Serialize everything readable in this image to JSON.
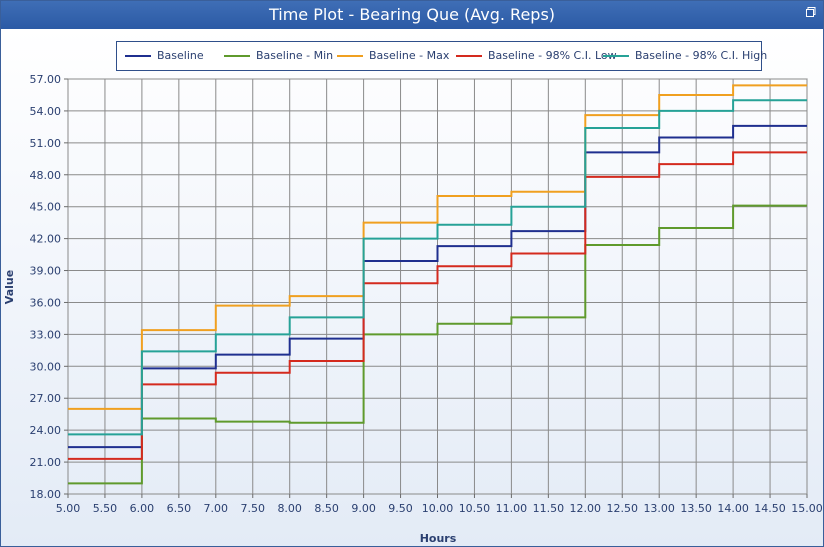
{
  "window": {
    "title": "Time Plot - Bearing Que (Avg. Reps)",
    "restore_icon": "restore-icon"
  },
  "chart_data": {
    "type": "line",
    "step": true,
    "xlabel": "Hours",
    "ylabel": "Value",
    "xlim": [
      5.0,
      15.0
    ],
    "ylim": [
      18.0,
      57.0
    ],
    "x_ticks": [
      "5.00",
      "5.50",
      "6.00",
      "6.50",
      "7.00",
      "7.50",
      "8.00",
      "8.50",
      "9.00",
      "9.50",
      "10.00",
      "10.50",
      "11.00",
      "11.50",
      "12.00",
      "12.50",
      "13.00",
      "13.50",
      "14.00",
      "14.50",
      "15.00"
    ],
    "y_ticks": [
      "18.00",
      "21.00",
      "24.00",
      "27.00",
      "30.00",
      "33.00",
      "36.00",
      "39.00",
      "42.00",
      "45.00",
      "48.00",
      "51.00",
      "54.00",
      "57.00"
    ],
    "grid": true,
    "legend_position": "top",
    "x": [
      5,
      6,
      7,
      8,
      9,
      10,
      11,
      12,
      13,
      14,
      15
    ],
    "series": [
      {
        "name": "Baseline",
        "color": "#1f2f8f",
        "values": [
          22.4,
          29.8,
          31.1,
          32.6,
          39.9,
          41.3,
          42.7,
          50.1,
          51.5,
          52.6,
          52.6
        ]
      },
      {
        "name": "Baseline - Min",
        "color": "#5f9a2c",
        "values": [
          19.0,
          25.1,
          24.8,
          24.7,
          33.0,
          34.0,
          34.6,
          41.4,
          43.0,
          45.1,
          45.1
        ]
      },
      {
        "name": "Baseline - Max",
        "color": "#f0a020",
        "values": [
          26.0,
          33.4,
          35.7,
          36.6,
          43.5,
          46.0,
          46.4,
          53.6,
          55.5,
          56.4,
          56.4
        ]
      },
      {
        "name": "Baseline - 98% C.I. Low",
        "color": "#d42a1e",
        "values": [
          21.3,
          28.3,
          29.4,
          30.5,
          37.8,
          39.4,
          40.6,
          47.8,
          49.0,
          50.1,
          50.1
        ]
      },
      {
        "name": "Baseline - 98% C.I. High",
        "color": "#26a297",
        "values": [
          23.6,
          31.4,
          33.0,
          34.6,
          42.0,
          43.3,
          45.0,
          52.4,
          54.0,
          55.0,
          55.0
        ]
      }
    ]
  }
}
